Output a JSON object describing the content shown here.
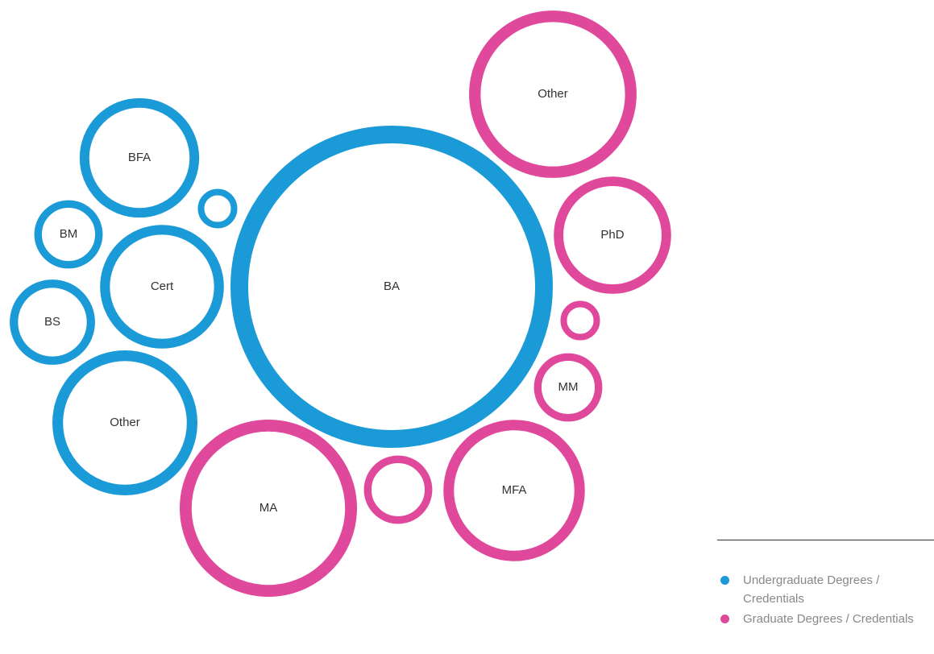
{
  "chart_data": {
    "type": "bubble",
    "legend": "bottom-right",
    "series": [
      {
        "name": "Undergraduate Degrees / Credentials",
        "color": "#1a9ad6",
        "labels": [
          "BA",
          "BFA",
          null,
          "BM",
          "Cert",
          "BS",
          "Other"
        ],
        "values": [
          400,
          55,
          6,
          18,
          59,
          28,
          81
        ]
      },
      {
        "name": "Graduate Degrees / Credentials",
        "color": "#e0489b",
        "labels": [
          "Other",
          "PhD",
          null,
          "MM",
          "MFA",
          null,
          "MA"
        ],
        "values": [
          108,
          53,
          6,
          18,
          77,
          18,
          121
        ]
      }
    ]
  }
}
